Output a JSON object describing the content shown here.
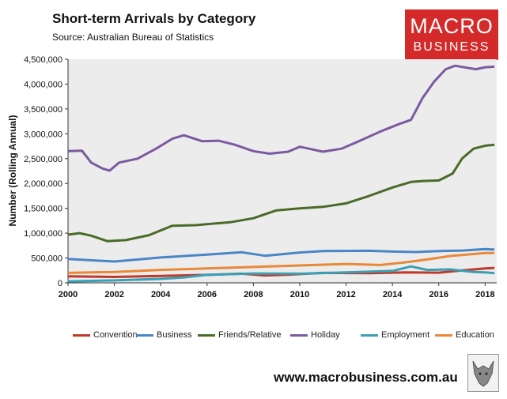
{
  "header": {
    "title": "Short-term Arrivals by Category",
    "subtitle": "Source: Australian Bureau of Statistics"
  },
  "logo": {
    "line1": "MACRO",
    "line2": "BUSINESS"
  },
  "footer": {
    "url": "www.macrobusiness.com.au"
  },
  "chart_data": {
    "type": "line",
    "title": "Short-term Arrivals by Category",
    "ylabel": "Number (Rolling Annual)",
    "xlabel": "",
    "xlim": [
      2000,
      2018.5
    ],
    "ylim": [
      0,
      4500000
    ],
    "x_ticks": [
      2000,
      2002,
      2004,
      2006,
      2008,
      2010,
      2012,
      2014,
      2016,
      2018
    ],
    "x_tick_labels": [
      "2000",
      "2002",
      "2004",
      "2006",
      "2008",
      "2010",
      "2012",
      "2014",
      "2016",
      "2018"
    ],
    "y_ticks": [
      0,
      500000,
      1000000,
      1500000,
      2000000,
      2500000,
      3000000,
      3500000,
      4000000,
      4500000
    ],
    "y_tick_labels": [
      "0",
      "500,000",
      "1,000,000",
      "1,500,000",
      "2,000,000",
      "2,500,000",
      "3,000,000",
      "3,500,000",
      "4,000,000",
      "4,500,000"
    ],
    "grid": false,
    "plot_background": "#ececec",
    "legend_position": "bottom",
    "series": [
      {
        "name": "Convention",
        "color": "#c0392b",
        "x": [
          2000,
          2002,
          2004,
          2006,
          2007.5,
          2008.5,
          2009.5,
          2011,
          2013,
          2014.5,
          2016,
          2017,
          2018,
          2018.4
        ],
        "values": [
          130000,
          120000,
          140000,
          160000,
          185000,
          150000,
          165000,
          200000,
          195000,
          210000,
          205000,
          250000,
          290000,
          300000
        ]
      },
      {
        "name": "Business",
        "color": "#4a86c5",
        "x": [
          2000,
          2002,
          2004,
          2006,
          2007.5,
          2008.5,
          2010,
          2011,
          2013,
          2014,
          2015,
          2016,
          2017,
          2018,
          2018.4
        ],
        "values": [
          480000,
          430000,
          510000,
          570000,
          615000,
          545000,
          610000,
          640000,
          645000,
          630000,
          620000,
          640000,
          650000,
          680000,
          670000
        ]
      },
      {
        "name": "Friends/Relative",
        "color": "#4a6b27",
        "x": [
          2000,
          2000.5,
          2001,
          2001.7,
          2002.5,
          2003.5,
          2004.5,
          2005.5,
          2007,
          2008,
          2009,
          2010,
          2011,
          2012,
          2013,
          2014,
          2014.8,
          2015.3,
          2016,
          2016.6,
          2017,
          2017.5,
          2018,
          2018.4
        ],
        "values": [
          970000,
          1000000,
          950000,
          840000,
          860000,
          960000,
          1150000,
          1160000,
          1220000,
          1300000,
          1460000,
          1500000,
          1530000,
          1600000,
          1750000,
          1920000,
          2030000,
          2050000,
          2060000,
          2200000,
          2500000,
          2700000,
          2760000,
          2780000
        ]
      },
      {
        "name": "Holiday",
        "color": "#7b5aa0",
        "x": [
          2000,
          2000.6,
          2001,
          2001.5,
          2001.8,
          2002.2,
          2003,
          2003.8,
          2004.5,
          2005,
          2005.8,
          2006.5,
          2007.2,
          2008,
          2008.7,
          2009.5,
          2010,
          2011,
          2011.8,
          2012.5,
          2013.5,
          2014.3,
          2014.8,
          2015.3,
          2015.8,
          2016.3,
          2016.7,
          2017.2,
          2017.6,
          2018,
          2018.4
        ],
        "values": [
          2650000,
          2660000,
          2420000,
          2300000,
          2260000,
          2420000,
          2500000,
          2700000,
          2900000,
          2970000,
          2850000,
          2860000,
          2780000,
          2650000,
          2600000,
          2640000,
          2740000,
          2640000,
          2700000,
          2840000,
          3050000,
          3200000,
          3280000,
          3720000,
          4050000,
          4300000,
          4370000,
          4330000,
          4300000,
          4340000,
          4350000
        ]
      },
      {
        "name": "Employment",
        "color": "#3aa0b5",
        "x": [
          2000,
          2002,
          2004,
          2005,
          2006,
          2008,
          2010,
          2012,
          2014,
          2014.8,
          2015.5,
          2016.5,
          2017.5,
          2018,
          2018.4
        ],
        "values": [
          30000,
          50000,
          80000,
          110000,
          160000,
          190000,
          185000,
          210000,
          240000,
          330000,
          260000,
          270000,
          220000,
          210000,
          195000
        ]
      },
      {
        "name": "Education",
        "color": "#e8893a",
        "x": [
          2000,
          2002,
          2004,
          2006,
          2008,
          2010,
          2012,
          2013.5,
          2014.5,
          2015.5,
          2016.5,
          2017.5,
          2018,
          2018.4
        ],
        "values": [
          200000,
          220000,
          260000,
          290000,
          320000,
          350000,
          380000,
          360000,
          410000,
          470000,
          540000,
          580000,
          600000,
          600000
        ]
      }
    ]
  }
}
